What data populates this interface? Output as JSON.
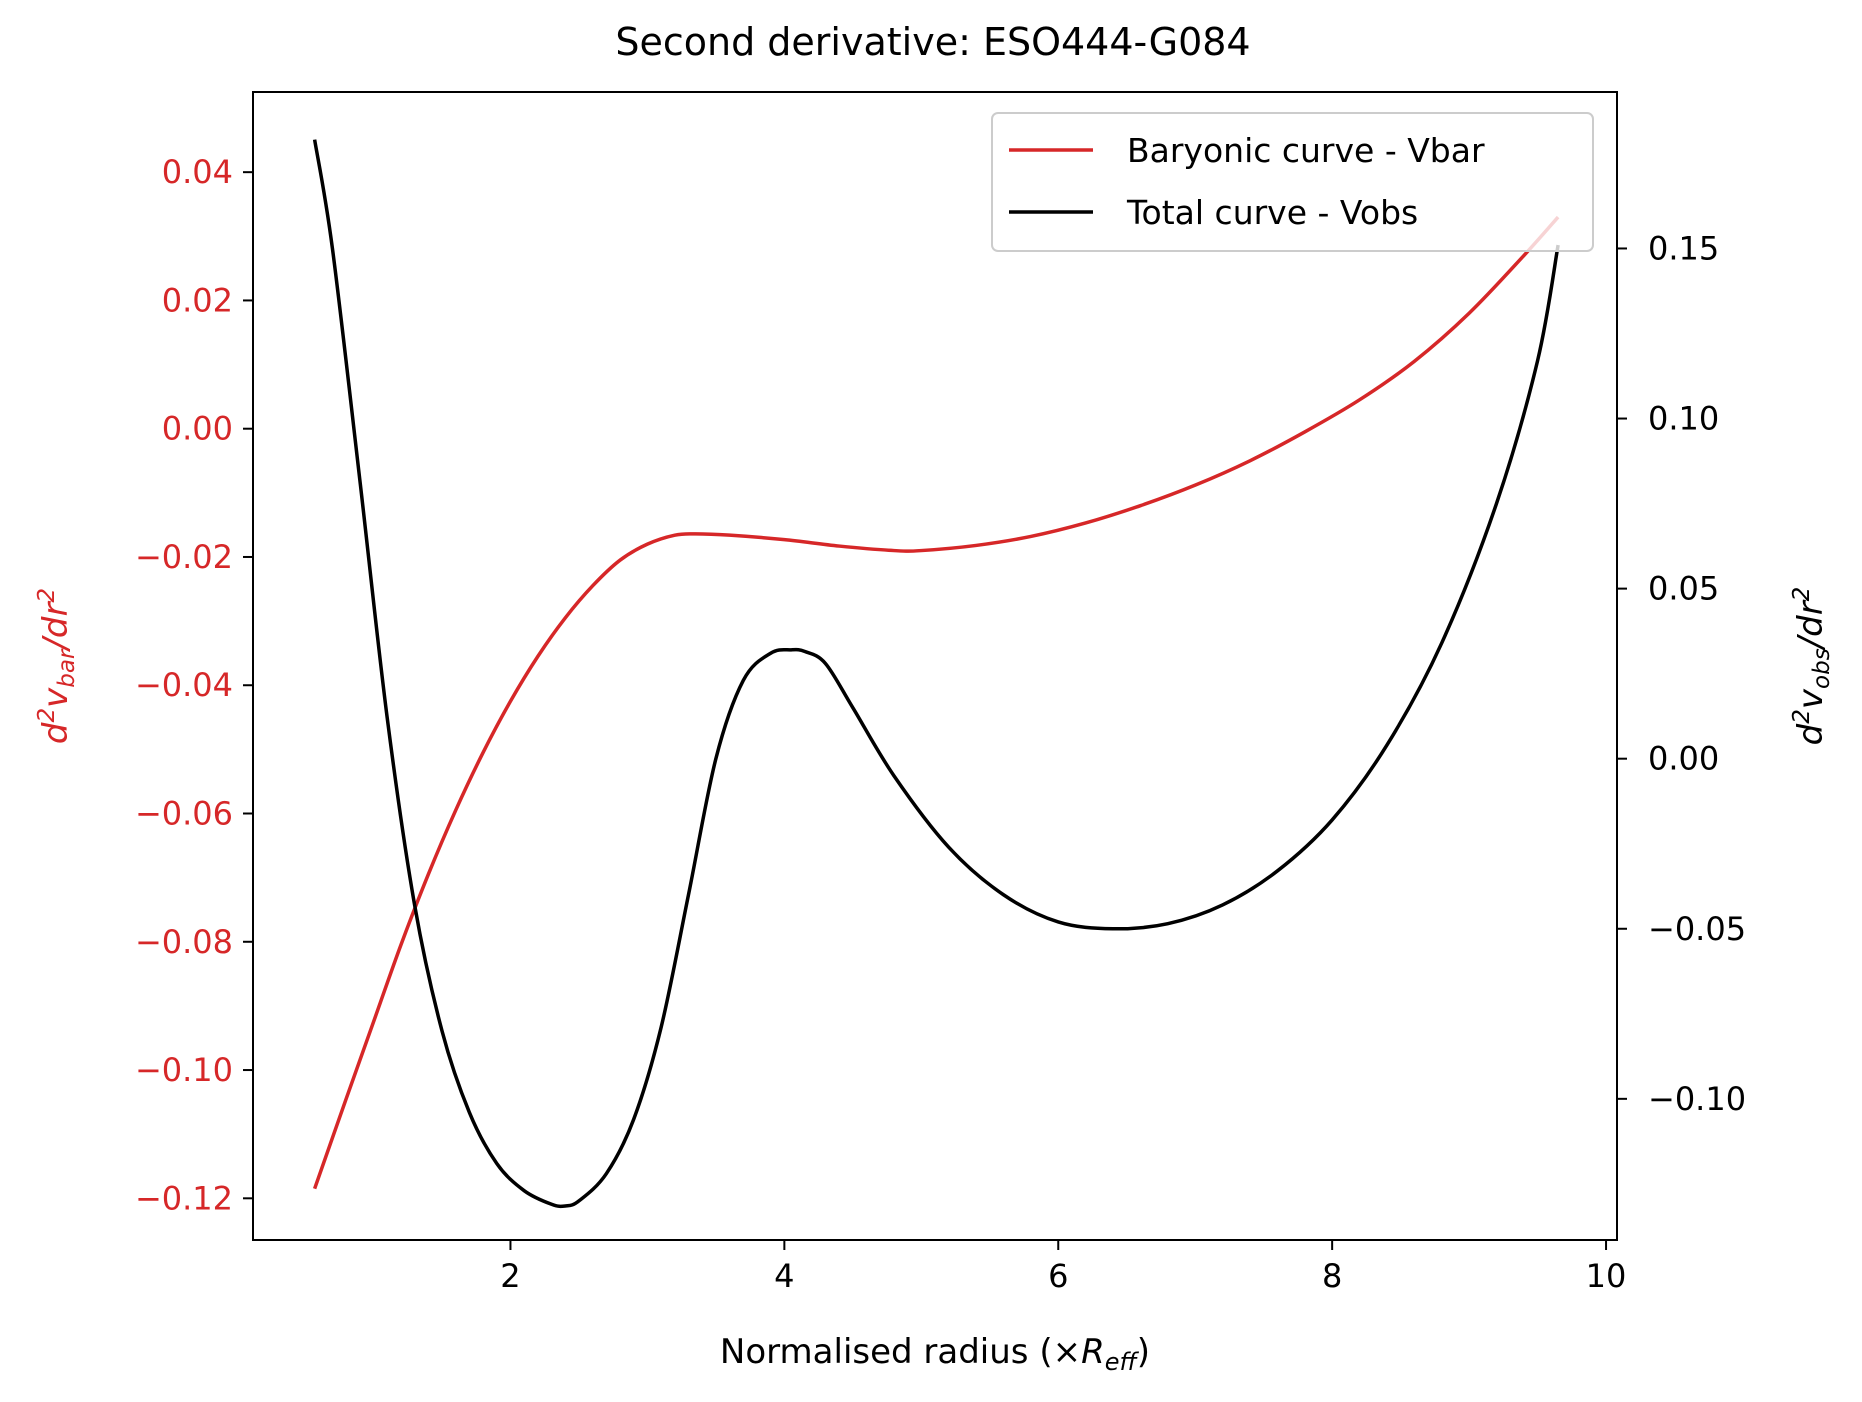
{
  "chart_data": {
    "type": "line",
    "title": "Second derivative: ESO444-G084",
    "xlabel": {
      "main": "Normalised radius (×",
      "var": "R",
      "sub": "eff",
      "close": ")"
    },
    "ylabel_left": {
      "text": "d²v_bar/dr²",
      "color": "#d62728"
    },
    "ylabel_right": {
      "text": "d²v_obs/dr²",
      "color": "#000000"
    },
    "xlim": [
      0.12,
      10.08
    ],
    "ylim_left": [
      -0.1265,
      0.0525
    ],
    "ylim_right": [
      -0.1415,
      0.196
    ],
    "x_ticks": [
      {
        "value": 2,
        "label": "2"
      },
      {
        "value": 4,
        "label": "4"
      },
      {
        "value": 6,
        "label": "6"
      },
      {
        "value": 8,
        "label": "8"
      },
      {
        "value": 10,
        "label": "10"
      }
    ],
    "y_ticks_left": [
      {
        "value": 0.04,
        "label": "0.04"
      },
      {
        "value": 0.02,
        "label": "0.02"
      },
      {
        "value": 0.0,
        "label": "0.00"
      },
      {
        "value": -0.02,
        "label": "−0.02"
      },
      {
        "value": -0.04,
        "label": "−0.04"
      },
      {
        "value": -0.06,
        "label": "−0.06"
      },
      {
        "value": -0.08,
        "label": "−0.08"
      },
      {
        "value": -0.1,
        "label": "−0.10"
      },
      {
        "value": -0.12,
        "label": "−0.12"
      }
    ],
    "y_ticks_right": [
      {
        "value": 0.15,
        "label": "0.15"
      },
      {
        "value": 0.1,
        "label": "0.10"
      },
      {
        "value": 0.05,
        "label": "0.05"
      },
      {
        "value": 0.0,
        "label": "0.00"
      },
      {
        "value": -0.05,
        "label": "−0.05"
      },
      {
        "value": -0.1,
        "label": "−0.10"
      }
    ],
    "legend": {
      "position": "top-right"
    },
    "series": [
      {
        "name": "Baryonic curve - Vbar",
        "axis": "left",
        "color": "#d62728",
        "x": [
          0.57,
          0.8,
          1.0,
          1.2,
          1.4,
          1.6,
          1.8,
          2.0,
          2.2,
          2.4,
          2.6,
          2.8,
          3.0,
          3.2,
          3.35,
          3.6,
          4.0,
          4.4,
          4.8,
          5.0,
          5.4,
          5.8,
          6.2,
          6.6,
          7.0,
          7.4,
          7.8,
          8.2,
          8.6,
          9.0,
          9.4,
          9.65
        ],
        "y": [
          -0.1185,
          -0.1045,
          -0.0925,
          -0.0805,
          -0.0695,
          -0.0595,
          -0.0505,
          -0.0425,
          -0.0355,
          -0.0295,
          -0.0245,
          -0.0205,
          -0.018,
          -0.0166,
          -0.0164,
          -0.0166,
          -0.0173,
          -0.0183,
          -0.019,
          -0.019,
          -0.0182,
          -0.0168,
          -0.0147,
          -0.012,
          -0.0088,
          -0.005,
          -0.0005,
          0.0045,
          0.0105,
          0.018,
          0.027,
          0.033
        ]
      },
      {
        "name": "Total curve - Vobs",
        "axis": "right",
        "color": "#000000",
        "x": [
          0.57,
          0.7,
          0.9,
          1.1,
          1.3,
          1.5,
          1.7,
          1.9,
          2.1,
          2.3,
          2.4,
          2.5,
          2.7,
          2.9,
          3.1,
          3.3,
          3.5,
          3.7,
          3.9,
          4.05,
          4.15,
          4.3,
          4.5,
          4.8,
          5.2,
          5.6,
          6.0,
          6.4,
          6.8,
          7.2,
          7.6,
          8.0,
          8.4,
          8.8,
          9.2,
          9.5,
          9.65
        ],
        "y": [
          0.182,
          0.15,
          0.082,
          0.012,
          -0.043,
          -0.08,
          -0.104,
          -0.119,
          -0.127,
          -0.131,
          -0.1315,
          -0.13,
          -0.122,
          -0.106,
          -0.079,
          -0.04,
          0.0,
          0.023,
          0.031,
          0.032,
          0.0315,
          0.028,
          0.015,
          -0.005,
          -0.026,
          -0.04,
          -0.048,
          -0.05,
          -0.0485,
          -0.043,
          -0.033,
          -0.018,
          0.004,
          0.034,
          0.075,
          0.117,
          0.151
        ]
      }
    ]
  }
}
